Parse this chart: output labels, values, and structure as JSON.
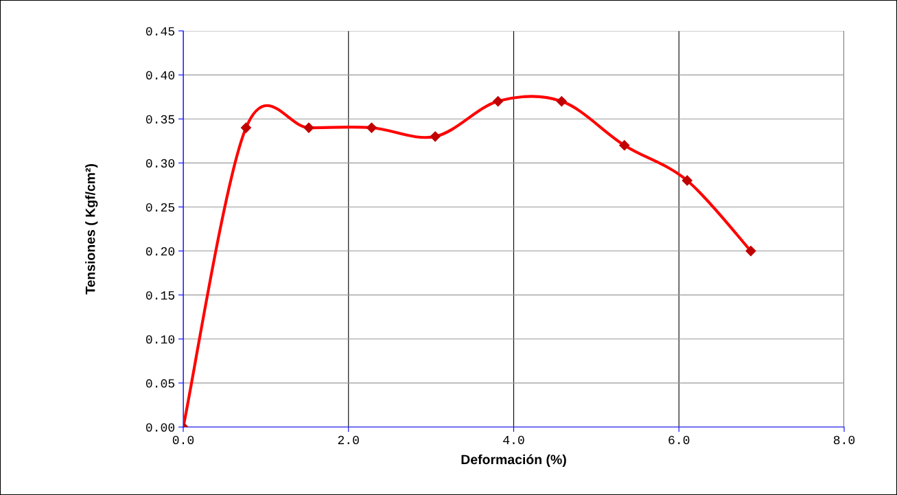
{
  "chart_data": {
    "type": "line",
    "xlabel": "Deformación (%)",
    "ylabel": "Tensiones ( Kgf/cm²)",
    "x": [
      0,
      0.76,
      1.52,
      2.28,
      3.05,
      3.81,
      4.58,
      5.34,
      6.1,
      6.87
    ],
    "series": [
      {
        "color": "#ff0000",
        "values": [
          0,
          0.34,
          0.34,
          0.34,
          0.33,
          0.37,
          0.37,
          0.32,
          0.28,
          0.2
        ]
      }
    ],
    "marker": "diamond",
    "line_style": "solid",
    "grid": true,
    "xlim": [
      0,
      8
    ],
    "xticks": [
      {
        "value": 0,
        "label": "0.0"
      },
      {
        "value": 2,
        "label": "2.0"
      },
      {
        "value": 4,
        "label": "4.0"
      },
      {
        "value": 6,
        "label": "6.0"
      },
      {
        "value": 8,
        "label": "8.0"
      }
    ],
    "ylim": [
      0,
      0.45
    ],
    "yticks": [
      {
        "value": 0,
        "label": "0.00"
      },
      {
        "value": 0.05,
        "label": "0.05"
      },
      {
        "value": 0.1,
        "label": "0.10"
      },
      {
        "value": 0.15,
        "label": "0.15"
      },
      {
        "value": 0.2,
        "label": "0.20"
      },
      {
        "value": 0.25,
        "label": "0.25"
      },
      {
        "value": 0.3,
        "label": "0.30"
      },
      {
        "value": 0.35,
        "label": "0.35"
      },
      {
        "value": 0.4,
        "label": "0.40"
      },
      {
        "value": 0.45,
        "label": "0.45"
      }
    ]
  }
}
